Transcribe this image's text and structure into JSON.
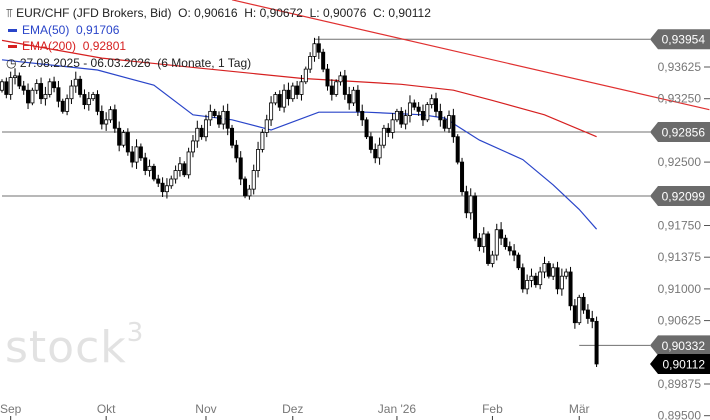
{
  "header": {
    "symbol": "EUR/CHF (JFD Brokers, Bid)",
    "open_label": "O:",
    "open": "0,90616",
    "high_label": "H:",
    "high": "0,90672",
    "low_label": "L:",
    "low": "0,90076",
    "close_label": "C:",
    "close": "0,90112",
    "ema50_label": "EMA(50)",
    "ema50_value": "0,91706",
    "ema200_label": "EMA(200)",
    "ema200_value": "0,92801",
    "range": "27.08.2025 - 06.03.2026",
    "period": "(6 Monate, 1 Tag)",
    "icon": "candlestick-icon",
    "clock_icon": "clock-icon"
  },
  "watermark": {
    "text": "stock",
    "sup": "3"
  },
  "colors": {
    "ema50": "#2a45c9",
    "ema200": "#d62020",
    "trendline": "#e03030",
    "level": "#707070",
    "label_bg": "#6b6b6b",
    "last_bg": "#000000"
  },
  "chart_data": {
    "type": "candlestick",
    "ylim": [
      0.895,
      0.9425
    ],
    "yticks": [
      {
        "value": 0.93625,
        "label": "0,93625"
      },
      {
        "value": 0.9325,
        "label": "0,93250"
      },
      {
        "value": 0.925,
        "label": "0,92500"
      },
      {
        "value": 0.9175,
        "label": "0,91750"
      },
      {
        "value": 0.91375,
        "label": "0,91375"
      },
      {
        "value": 0.91,
        "label": "0,91000"
      },
      {
        "value": 0.90625,
        "label": "0,90625"
      },
      {
        "value": 0.89875,
        "label": "0,89875"
      },
      {
        "value": 0.895,
        "label": "0,89500"
      }
    ],
    "xticks": [
      {
        "index": 2,
        "label": "Sep"
      },
      {
        "index": 24,
        "label": "Okt"
      },
      {
        "index": 47,
        "label": "Nov"
      },
      {
        "index": 67,
        "label": "Dez"
      },
      {
        "index": 91,
        "label": "Jan '26"
      },
      {
        "index": 113,
        "label": "Feb"
      },
      {
        "index": 133,
        "label": "Mär"
      }
    ],
    "first_open": 0.9335,
    "last_candle": {
      "open": 0.90616,
      "high": 0.90672,
      "low": 0.90076,
      "close": 0.90112
    },
    "closes": [
      0.9345,
      0.933,
      0.935,
      0.9352,
      0.934,
      0.9335,
      0.932,
      0.9335,
      0.9343,
      0.9325,
      0.933,
      0.9345,
      0.9338,
      0.9322,
      0.931,
      0.9325,
      0.934,
      0.9348,
      0.933,
      0.9318,
      0.9325,
      0.933,
      0.931,
      0.9295,
      0.93,
      0.9312,
      0.929,
      0.927,
      0.9285,
      0.9262,
      0.925,
      0.9268,
      0.9255,
      0.924,
      0.9245,
      0.923,
      0.9225,
      0.9215,
      0.9222,
      0.923,
      0.924,
      0.9248,
      0.9235,
      0.9262,
      0.9275,
      0.929,
      0.928,
      0.93,
      0.931,
      0.9305,
      0.9295,
      0.931,
      0.929,
      0.927,
      0.9255,
      0.923,
      0.921,
      0.9218,
      0.924,
      0.9265,
      0.9285,
      0.93,
      0.932,
      0.933,
      0.9315,
      0.9335,
      0.9325,
      0.934,
      0.933,
      0.9345,
      0.936,
      0.9375,
      0.939,
      0.938,
      0.936,
      0.934,
      0.933,
      0.9345,
      0.9352,
      0.933,
      0.932,
      0.9335,
      0.931,
      0.93,
      0.928,
      0.9265,
      0.9255,
      0.927,
      0.929,
      0.9285,
      0.93,
      0.931,
      0.9295,
      0.9305,
      0.932,
      0.9315,
      0.931,
      0.93,
      0.9318,
      0.9325,
      0.931,
      0.93,
      0.929,
      0.9305,
      0.928,
      0.925,
      0.9215,
      0.919,
      0.921,
      0.916,
      0.915,
      0.9165,
      0.913,
      0.914,
      0.917,
      0.916,
      0.915,
      0.9145,
      0.914,
      0.9125,
      0.91,
      0.911,
      0.9115,
      0.9105,
      0.912,
      0.913,
      0.9115,
      0.9125,
      0.91,
      0.9115,
      0.912,
      0.908,
      0.906,
      0.909,
      0.9075,
      0.9065,
      0.90616,
      0.90112
    ],
    "ema50": [
      [
        0,
        0.9371
      ],
      [
        22,
        0.9359
      ],
      [
        35,
        0.9341
      ],
      [
        44,
        0.9306
      ],
      [
        53,
        0.93
      ],
      [
        62,
        0.9288
      ],
      [
        73,
        0.9309
      ],
      [
        84,
        0.9309
      ],
      [
        97,
        0.9306
      ],
      [
        102,
        0.9302
      ],
      [
        110,
        0.9276
      ],
      [
        120,
        0.9253
      ],
      [
        127,
        0.9223
      ],
      [
        133,
        0.9194
      ],
      [
        137,
        0.91706
      ]
    ],
    "ema200": [
      [
        0,
        0.9394
      ],
      [
        23,
        0.9373
      ],
      [
        46,
        0.9361
      ],
      [
        69,
        0.9349
      ],
      [
        92,
        0.9342
      ],
      [
        104,
        0.9335
      ],
      [
        113,
        0.9323
      ],
      [
        125,
        0.9306
      ],
      [
        137,
        0.92801
      ]
    ],
    "trendline": [
      [
        53,
        0.9442
      ],
      [
        163,
        0.9312
      ]
    ],
    "levels": [
      {
        "value": 0.93954,
        "label": "0,93954",
        "from_index": 72
      },
      {
        "value": 0.92856,
        "label": "0,92856",
        "from_index": 0
      },
      {
        "value": 0.92099,
        "label": "0,92099",
        "from_index": 0
      },
      {
        "value": 0.90332,
        "label": "0,90332",
        "from_index": 133
      }
    ],
    "last_price": {
      "value": 0.90112,
      "label": "0,90112"
    }
  }
}
